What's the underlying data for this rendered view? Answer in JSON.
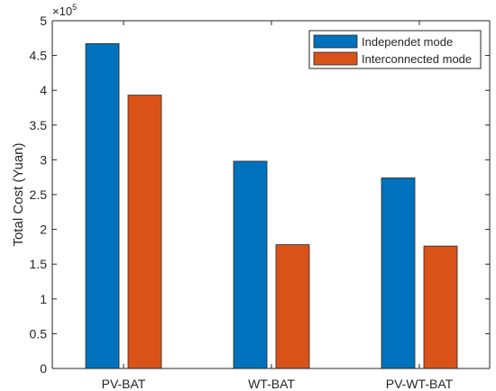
{
  "chart_data": {
    "type": "bar",
    "title": "",
    "xlabel": "",
    "ylabel": "Total Cost (Yuan)",
    "y_exponent_label": "×10",
    "y_exponent_power": "5",
    "ylim": [
      0,
      5
    ],
    "y_ticks": [
      "0",
      "0.5",
      "1",
      "1.5",
      "2",
      "2.5",
      "3",
      "3.5",
      "4",
      "4.5",
      "5"
    ],
    "grid": false,
    "legend_position": "top-right",
    "categories": [
      "PV-BAT",
      "WT-BAT",
      "PV-WT-BAT"
    ],
    "series": [
      {
        "name": "Independet mode",
        "color": "#0072BD",
        "values": [
          4.67,
          2.98,
          2.74
        ]
      },
      {
        "name": "Interconnected mode",
        "color": "#D95319",
        "values": [
          3.93,
          1.78,
          1.76
        ]
      }
    ]
  }
}
